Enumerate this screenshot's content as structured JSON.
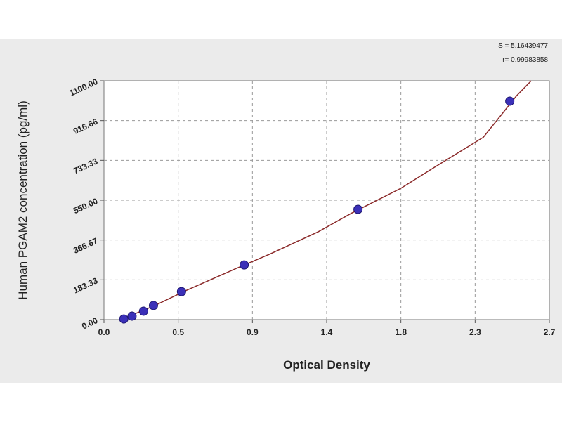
{
  "chart_data": {
    "type": "scatter",
    "xlabel": "Optical Density",
    "ylabel": "Human  PGAM2 concentration (pg/ml)",
    "annotations": [
      "S = 5.16439477",
      "r= 0.99983858"
    ],
    "xlim": [
      0,
      2.7
    ],
    "ylim": [
      0,
      1100
    ],
    "xticks": [
      {
        "value": 0,
        "label": "0.0"
      },
      {
        "value": 0.45,
        "label": "0.5"
      },
      0.9,
      {
        "value": 1.35,
        "label": "1.4"
      },
      1.8,
      {
        "value": 2.25,
        "label": "2.3"
      },
      2.7
    ],
    "yticks": [
      {
        "value": 0,
        "label": "0.00"
      },
      183.33,
      366.67,
      {
        "value": 550,
        "label": "550.00"
      },
      733.33,
      916.66,
      {
        "value": 1100,
        "label": "1100.00"
      }
    ],
    "grid": true,
    "series": [
      {
        "color": "#3b30b8",
        "x": [
          0.12,
          0.17,
          0.24,
          0.3,
          0.47,
          0.85,
          1.54,
          2.46
        ],
        "values": [
          3,
          16,
          39,
          65,
          129,
          252,
          508,
          1006
        ]
      }
    ],
    "curve": {
      "color": "#8b2a2a",
      "x": [
        0.1,
        0.3,
        0.5,
        0.8,
        1.0,
        1.3,
        1.5,
        1.8,
        2.0,
        2.3,
        2.5,
        2.59
      ],
      "values": [
        0,
        62,
        135,
        235,
        300,
        405,
        490,
        605,
        700,
        840,
        1030,
        1100
      ]
    }
  }
}
